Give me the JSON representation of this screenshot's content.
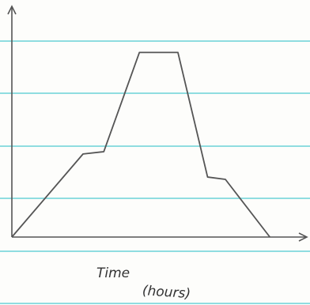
{
  "chart_data": {
    "type": "line",
    "xlabel": [
      "Time",
      "(hours)"
    ],
    "x": [
      0,
      2.4,
      3.1,
      4.3,
      5.6,
      6.6,
      7.2,
      8.7
    ],
    "series": [
      {
        "color": "#555555",
        "values": [
          0,
          3.6,
          3.7,
          8,
          8,
          2.6,
          2.5,
          0
        ]
      }
    ],
    "xlim": [
      0,
      10
    ],
    "ylim": [
      0,
      10
    ]
  }
}
